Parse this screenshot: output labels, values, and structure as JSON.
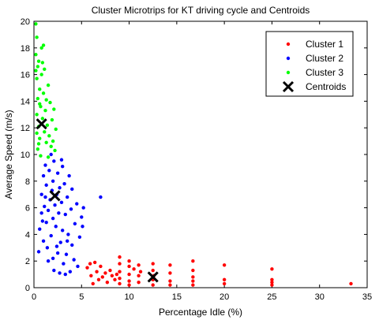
{
  "chart_data": {
    "type": "scatter",
    "title": "Cluster Microtrips for KT driving cycle and Centroids",
    "xlabel": "Percentage Idle (%)",
    "ylabel": "Average Speed (m/s)",
    "xlim": [
      0,
      35
    ],
    "ylim": [
      0,
      20
    ],
    "xticks": [
      0,
      5,
      10,
      15,
      20,
      25,
      30,
      35
    ],
    "yticks": [
      0,
      2,
      4,
      6,
      8,
      10,
      12,
      14,
      16,
      18,
      20
    ],
    "grid": false,
    "legend_position": "top-right",
    "series": [
      {
        "name": "Cluster 1",
        "color": "#ff0000",
        "marker": "dot",
        "points": [
          [
            5.6,
            1.5
          ],
          [
            5.9,
            1.8
          ],
          [
            6.0,
            0.9
          ],
          [
            6.2,
            0.3
          ],
          [
            6.4,
            1.9
          ],
          [
            6.6,
            1.2
          ],
          [
            6.8,
            0.6
          ],
          [
            7.0,
            1.6
          ],
          [
            7.2,
            0.8
          ],
          [
            7.5,
            1.1
          ],
          [
            7.7,
            0.4
          ],
          [
            8.0,
            1.3
          ],
          [
            8.2,
            0.9
          ],
          [
            8.5,
            0.6
          ],
          [
            8.7,
            1.0
          ],
          [
            9.0,
            2.3
          ],
          [
            9.0,
            1.8
          ],
          [
            9.0,
            1.2
          ],
          [
            9.0,
            0.7
          ],
          [
            9.0,
            0.3
          ],
          [
            10.0,
            2.0
          ],
          [
            10.0,
            1.6
          ],
          [
            10.0,
            1.0
          ],
          [
            10.0,
            0.5
          ],
          [
            10.0,
            0.2
          ],
          [
            10.5,
            1.4
          ],
          [
            11.0,
            1.7
          ],
          [
            11.0,
            0.9
          ],
          [
            11.0,
            0.4
          ],
          [
            11.2,
            1.2
          ],
          [
            12.5,
            1.8
          ],
          [
            12.5,
            1.3
          ],
          [
            12.5,
            0.6
          ],
          [
            12.5,
            0.2
          ],
          [
            12.6,
            0.9
          ],
          [
            14.3,
            1.7
          ],
          [
            14.3,
            1.1
          ],
          [
            14.3,
            0.5
          ],
          [
            14.3,
            0.2
          ],
          [
            16.7,
            2.0
          ],
          [
            16.7,
            1.3
          ],
          [
            16.7,
            0.8
          ],
          [
            16.7,
            0.5
          ],
          [
            16.7,
            0.2
          ],
          [
            20.0,
            1.7
          ],
          [
            20.0,
            0.6
          ],
          [
            20.0,
            0.3
          ],
          [
            25.0,
            1.4
          ],
          [
            25.0,
            0.6
          ],
          [
            25.0,
            0.4
          ],
          [
            25.0,
            0.2
          ],
          [
            33.3,
            0.3
          ]
        ]
      },
      {
        "name": "Cluster 2",
        "color": "#0000ff",
        "marker": "dot",
        "points": [
          [
            0.5,
            2.7
          ],
          [
            0.6,
            4.4
          ],
          [
            0.8,
            5.6
          ],
          [
            0.8,
            7.0
          ],
          [
            1.0,
            3.5
          ],
          [
            1.0,
            8.4
          ],
          [
            1.1,
            6.1
          ],
          [
            1.2,
            9.2
          ],
          [
            1.3,
            4.9
          ],
          [
            1.3,
            7.7
          ],
          [
            1.5,
            2.0
          ],
          [
            1.5,
            5.8
          ],
          [
            1.6,
            8.8
          ],
          [
            1.7,
            6.6
          ],
          [
            1.8,
            3.9
          ],
          [
            1.8,
            10.0
          ],
          [
            1.9,
            7.3
          ],
          [
            2.0,
            5.2
          ],
          [
            2.0,
            8.0
          ],
          [
            2.1,
            1.3
          ],
          [
            2.1,
            9.5
          ],
          [
            2.2,
            6.2
          ],
          [
            2.3,
            4.6
          ],
          [
            2.4,
            7.0
          ],
          [
            2.5,
            2.6
          ],
          [
            2.5,
            8.6
          ],
          [
            2.6,
            5.6
          ],
          [
            2.7,
            1.1
          ],
          [
            2.7,
            7.5
          ],
          [
            2.8,
            3.4
          ],
          [
            2.9,
            6.4
          ],
          [
            3.0,
            9.1
          ],
          [
            3.0,
            4.3
          ],
          [
            3.1,
            1.8
          ],
          [
            3.2,
            7.8
          ],
          [
            3.3,
            5.5
          ],
          [
            3.4,
            2.5
          ],
          [
            3.5,
            6.8
          ],
          [
            3.6,
            4.0
          ],
          [
            3.7,
            8.4
          ],
          [
            3.8,
            1.2
          ],
          [
            3.9,
            5.9
          ],
          [
            4.0,
            3.2
          ],
          [
            4.0,
            7.4
          ],
          [
            4.2,
            2.1
          ],
          [
            4.3,
            4.8
          ],
          [
            4.5,
            6.3
          ],
          [
            4.6,
            1.6
          ],
          [
            4.8,
            3.8
          ],
          [
            5.0,
            5.3
          ],
          [
            5.1,
            4.6
          ],
          [
            5.2,
            6.0
          ],
          [
            1.4,
            3.0
          ],
          [
            2.4,
            3.1
          ],
          [
            3.3,
            1.0
          ],
          [
            2.0,
            2.2
          ],
          [
            3.5,
            3.5
          ],
          [
            2.9,
            9.6
          ],
          [
            1.2,
            6.8
          ],
          [
            0.9,
            5.0
          ],
          [
            7.0,
            6.8
          ]
        ]
      },
      {
        "name": "Cluster 3",
        "color": "#00ff00",
        "marker": "dot",
        "points": [
          [
            0.2,
            19.8
          ],
          [
            0.3,
            18.8
          ],
          [
            0.2,
            17.5
          ],
          [
            0.4,
            16.6
          ],
          [
            0.3,
            15.7
          ],
          [
            0.5,
            17.0
          ],
          [
            0.6,
            14.9
          ],
          [
            0.4,
            14.2
          ],
          [
            0.7,
            13.6
          ],
          [
            0.3,
            13.0
          ],
          [
            0.8,
            16.0
          ],
          [
            0.9,
            12.7
          ],
          [
            0.5,
            12.1
          ],
          [
            1.0,
            14.6
          ],
          [
            1.1,
            11.7
          ],
          [
            0.6,
            11.2
          ],
          [
            1.2,
            13.3
          ],
          [
            1.3,
            10.9
          ],
          [
            0.4,
            10.4
          ],
          [
            1.4,
            12.2
          ],
          [
            1.5,
            15.2
          ],
          [
            1.6,
            11.4
          ],
          [
            0.7,
            9.9
          ],
          [
            1.7,
            13.9
          ],
          [
            1.8,
            10.6
          ],
          [
            0.9,
            16.9
          ],
          [
            1.9,
            12.6
          ],
          [
            2.0,
            11.0
          ],
          [
            1.0,
            18.2
          ],
          [
            2.1,
            13.4
          ],
          [
            2.2,
            10.3
          ],
          [
            0.2,
            16.3
          ],
          [
            1.5,
            9.8
          ],
          [
            0.8,
            18.0
          ],
          [
            0.3,
            11.6
          ],
          [
            1.1,
            16.4
          ],
          [
            0.6,
            13.8
          ],
          [
            1.3,
            14.1
          ],
          [
            2.3,
            11.9
          ],
          [
            0.5,
            10.8
          ]
        ]
      }
    ],
    "centroids": {
      "name": "Centroids",
      "color": "#000000",
      "marker": "x",
      "points": [
        [
          0.8,
          12.3
        ],
        [
          2.2,
          6.9
        ],
        [
          12.5,
          0.8
        ]
      ]
    }
  }
}
